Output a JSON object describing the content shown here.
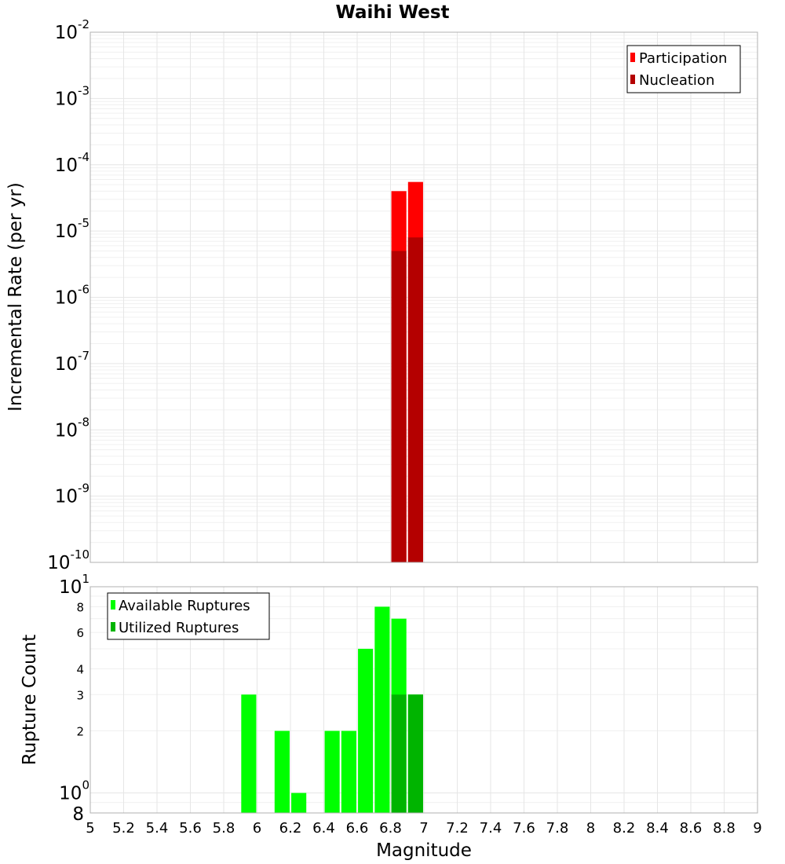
{
  "chart_data": [
    {
      "type": "bar",
      "title": "Waihi West",
      "xlabel": "",
      "ylabel": "Incremental Rate (per yr)",
      "yscale": "log",
      "xlim": [
        5,
        9
      ],
      "ylim": [
        1e-10,
        0.01
      ],
      "grid": true,
      "legend_position": "top-right",
      "y_ticks": [
        {
          "base": "10",
          "exp": "-2"
        },
        {
          "base": "10",
          "exp": "-3"
        },
        {
          "base": "10",
          "exp": "-4"
        },
        {
          "base": "10",
          "exp": "-5"
        },
        {
          "base": "10",
          "exp": "-6"
        },
        {
          "base": "10",
          "exp": "-7"
        },
        {
          "base": "10",
          "exp": "-8"
        },
        {
          "base": "10",
          "exp": "-9"
        },
        {
          "base": "10",
          "exp": "-10"
        }
      ],
      "series": [
        {
          "name": "Participation",
          "color": "#ff0000",
          "x": [
            6.85,
            6.95
          ],
          "values": [
            4e-05,
            5.5e-05
          ]
        },
        {
          "name": "Nucleation",
          "color": "#b40000",
          "x": [
            6.85,
            6.95
          ],
          "values": [
            5e-06,
            8e-06
          ]
        }
      ]
    },
    {
      "type": "bar",
      "title": "",
      "xlabel": "Magnitude",
      "ylabel": "Rupture Count",
      "yscale": "log",
      "xlim": [
        5,
        9
      ],
      "ylim": [
        0.8,
        10
      ],
      "grid": true,
      "legend_position": "top-left",
      "x_ticks": [
        "5",
        "5.2",
        "5.4",
        "5.6",
        "5.8",
        "6",
        "6.2",
        "6.4",
        "6.6",
        "6.8",
        "7",
        "7.2",
        "7.4",
        "7.6",
        "7.8",
        "8",
        "8.2",
        "8.4",
        "8.6",
        "8.8",
        "9"
      ],
      "y_ticks_major": [
        {
          "base": "10",
          "exp": "1"
        },
        {
          "base": "10",
          "exp": "0"
        }
      ],
      "y_ticks_minor": [
        "8",
        "6",
        "4",
        "3",
        "2"
      ],
      "y_tick_bottom": "8",
      "series": [
        {
          "name": "Available Ruptures",
          "color": "#00ff00",
          "x": [
            5.95,
            6.15,
            6.25,
            6.45,
            6.55,
            6.65,
            6.75,
            6.85,
            6.95
          ],
          "values": [
            3,
            2,
            1,
            2,
            2,
            5,
            8,
            7,
            3
          ]
        },
        {
          "name": "Utilized Ruptures",
          "color": "#00b400",
          "x": [
            6.85,
            6.95
          ],
          "values": [
            3,
            3
          ]
        }
      ]
    }
  ]
}
